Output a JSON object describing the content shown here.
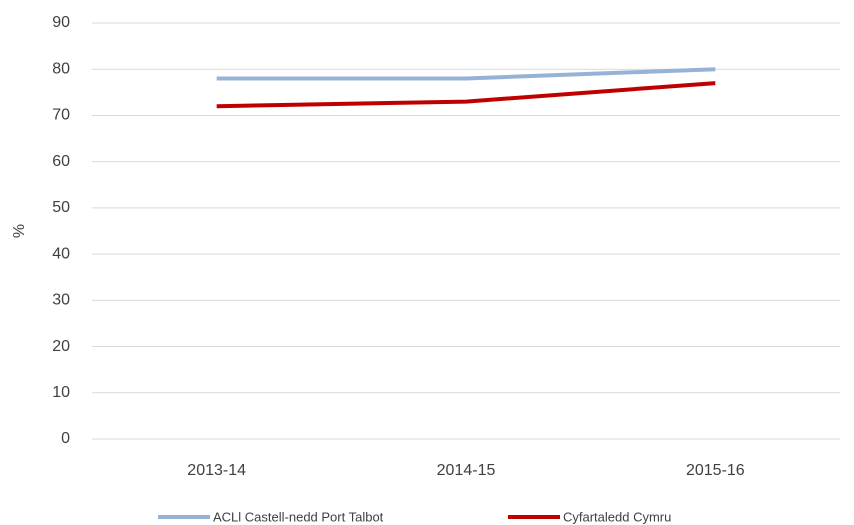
{
  "chart_data": {
    "type": "line",
    "y_label": "%",
    "categories": [
      "2013-14",
      "2014-15",
      "2015-16"
    ],
    "series": [
      {
        "name": "ACLl Castell-nedd Port Talbot",
        "color": "#95b3d7",
        "values": [
          78,
          78,
          80
        ]
      },
      {
        "name": "Cyfartaledd Cymru",
        "color": "#c00000",
        "values": [
          72,
          73,
          77
        ]
      }
    ],
    "ylim": [
      0,
      90
    ],
    "yticks": [
      0,
      10,
      20,
      30,
      40,
      50,
      60,
      70,
      80,
      90
    ],
    "grid": true,
    "legend": "bottom"
  }
}
